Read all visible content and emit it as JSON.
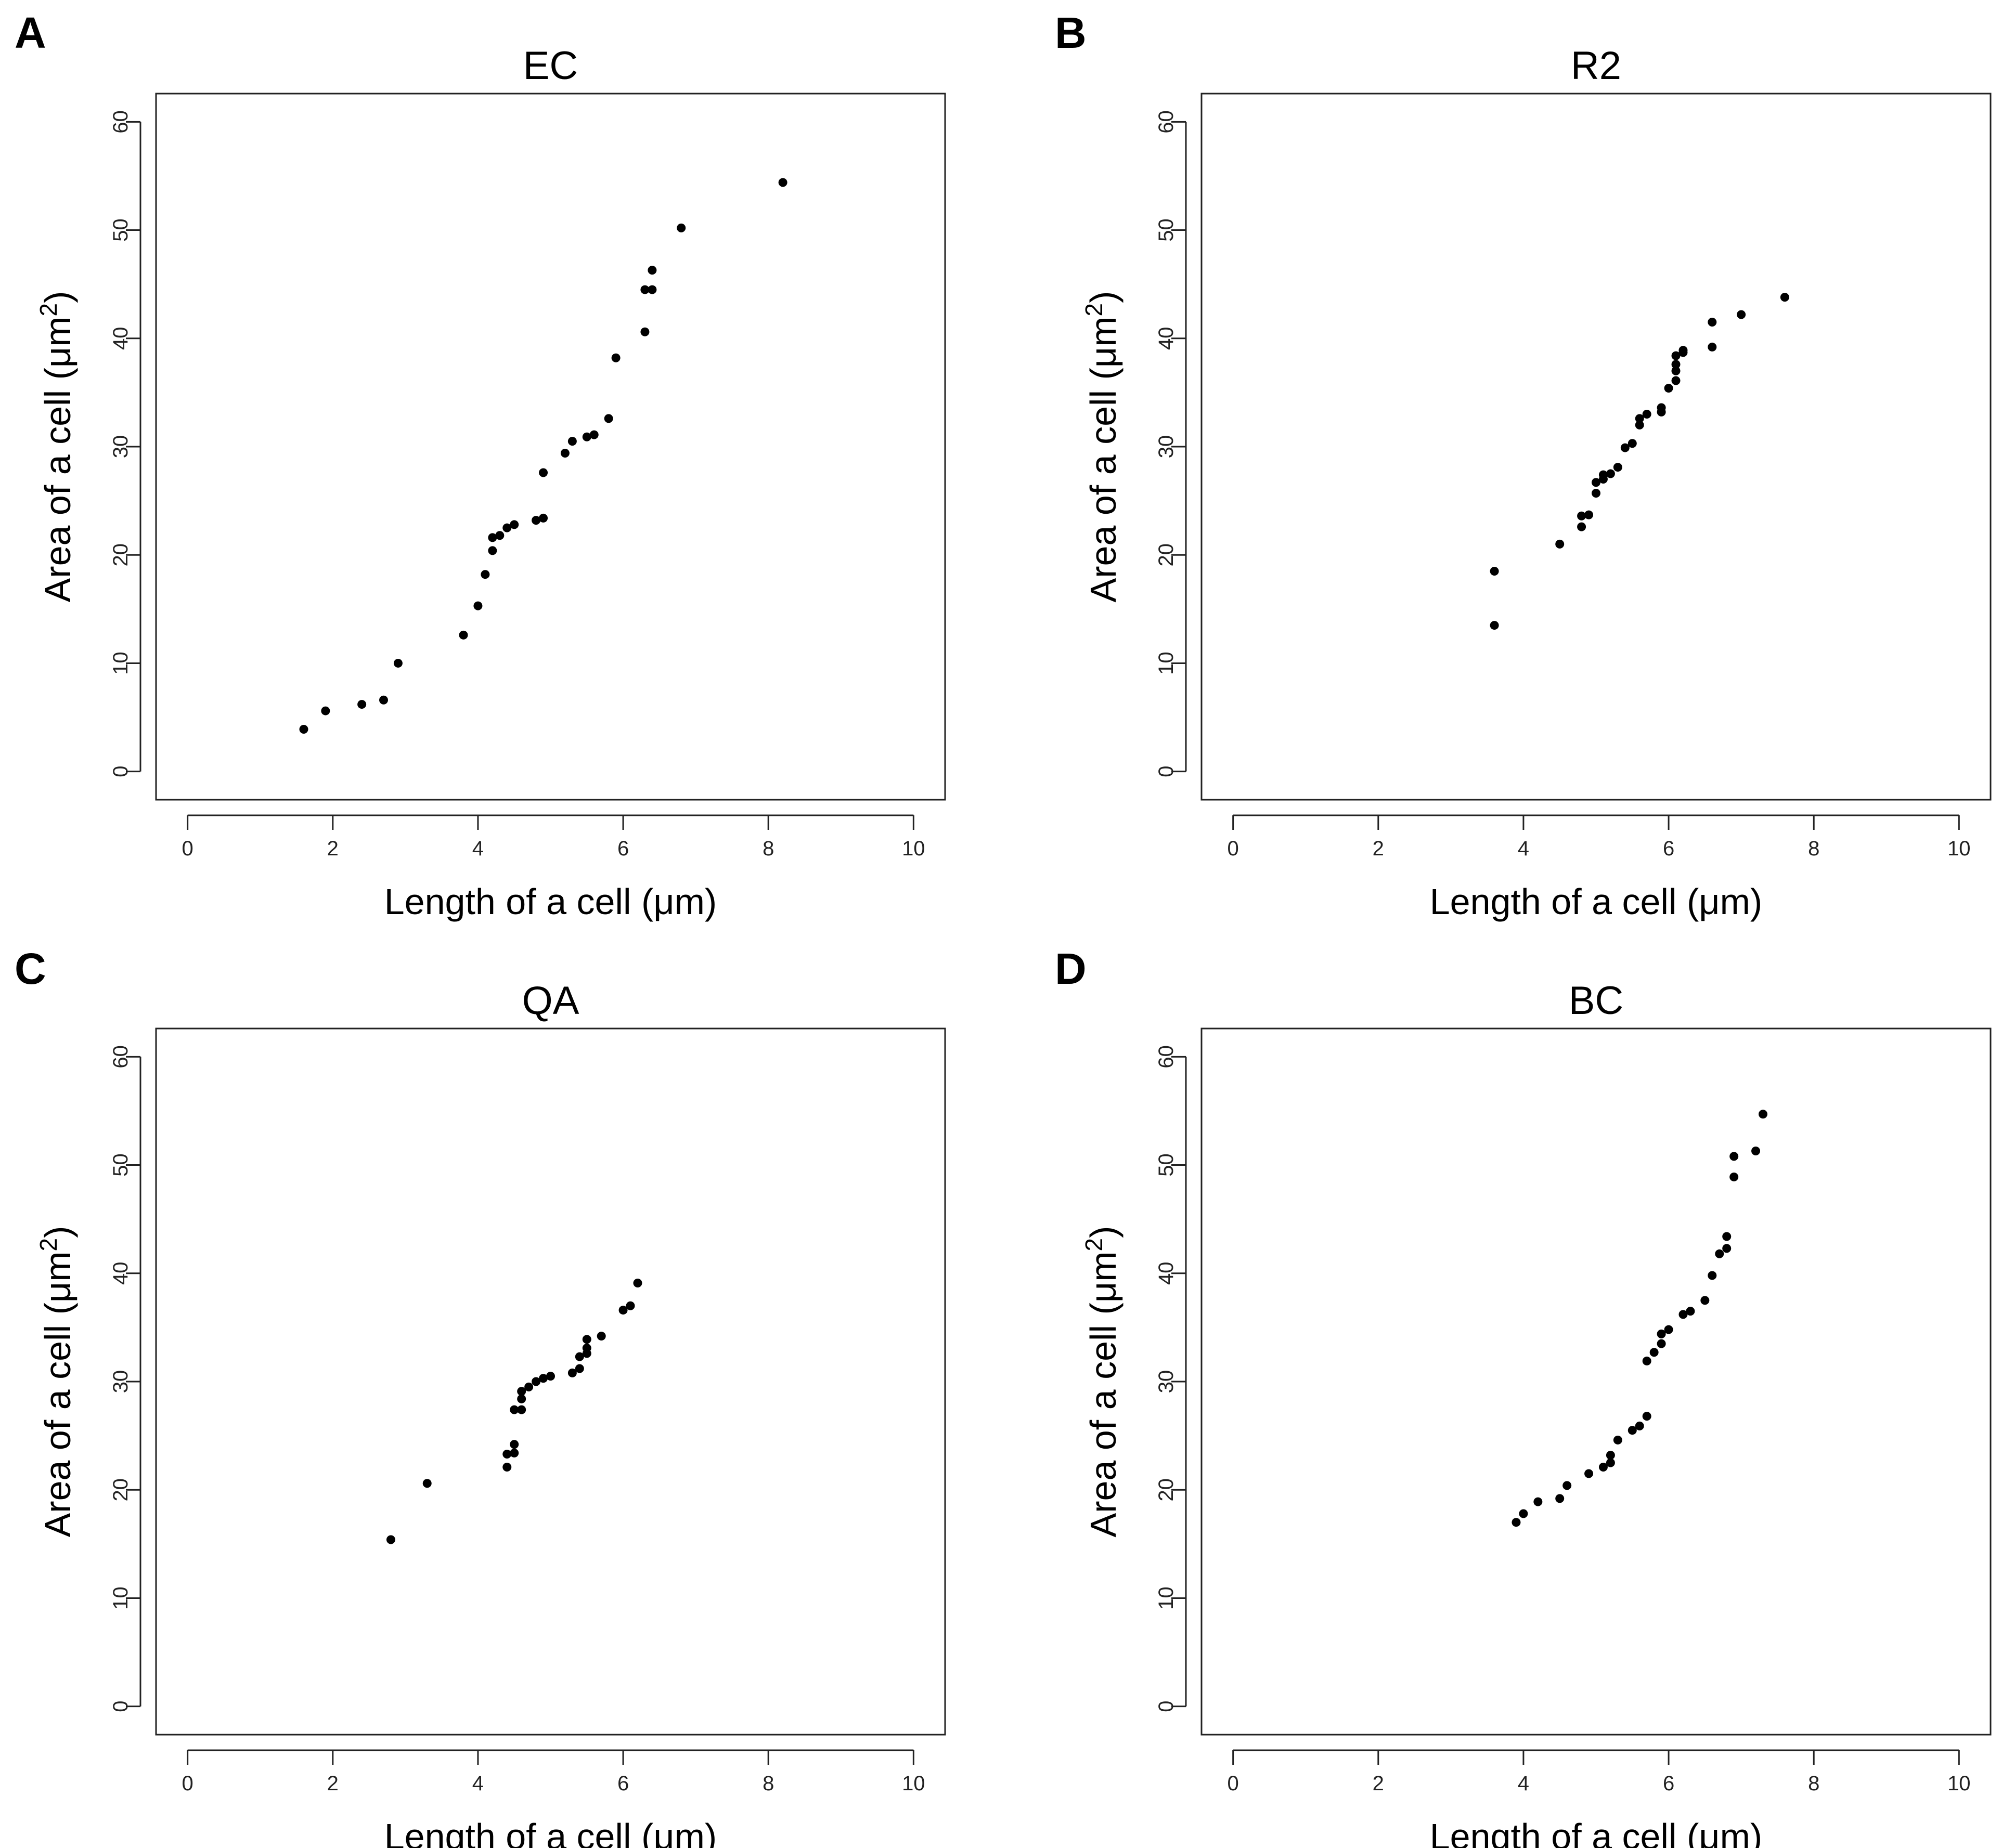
{
  "colors": {
    "background": "#ffffff",
    "points": "#000000",
    "axes": "#222222"
  },
  "chart_data": [
    {
      "panel": "A",
      "type": "scatter",
      "title": "EC",
      "xlabel": "Length of a cell (μm)",
      "ylabel_prefix": "Area of a cell (μm",
      "ylabel_sup": "2",
      "ylabel_suffix": ")",
      "xlim": [
        0,
        10
      ],
      "ylim": [
        0,
        60
      ],
      "xticks": [
        0,
        2,
        4,
        6,
        8,
        10
      ],
      "yticks": [
        0,
        10,
        20,
        30,
        40,
        50,
        60
      ],
      "x": [
        1.6,
        1.9,
        2.4,
        2.7,
        2.9,
        3.8,
        4.0,
        4.1,
        4.2,
        4.2,
        4.3,
        4.4,
        4.5,
        4.8,
        4.9,
        4.9,
        5.2,
        5.3,
        5.5,
        5.6,
        5.8,
        5.9,
        6.3,
        6.3,
        6.4,
        6.4,
        6.8,
        8.2
      ],
      "y": [
        3.9,
        5.6,
        6.2,
        6.6,
        10.0,
        12.6,
        15.3,
        18.2,
        20.4,
        21.6,
        21.8,
        22.5,
        22.8,
        23.2,
        23.4,
        27.6,
        29.4,
        30.5,
        30.9,
        31.1,
        32.6,
        38.2,
        40.6,
        44.5,
        44.5,
        46.3,
        50.2,
        54.4
      ]
    },
    {
      "panel": "B",
      "type": "scatter",
      "title": "R2",
      "xlabel": "Length of a cell (μm)",
      "ylabel_prefix": "Area of a cell (μm",
      "ylabel_sup": "2",
      "ylabel_suffix": ")",
      "xlim": [
        0,
        10
      ],
      "ylim": [
        0,
        60
      ],
      "xticks": [
        0,
        2,
        4,
        6,
        8,
        10
      ],
      "yticks": [
        0,
        10,
        20,
        30,
        40,
        50,
        60
      ],
      "x": [
        3.6,
        3.6,
        4.5,
        4.8,
        4.8,
        4.9,
        5.0,
        5.0,
        5.1,
        5.1,
        5.2,
        5.3,
        5.4,
        5.5,
        5.6,
        5.6,
        5.7,
        5.9,
        5.9,
        6.0,
        6.1,
        6.1,
        6.1,
        6.1,
        6.2,
        6.2,
        6.6,
        6.6,
        7.0,
        7.6
      ],
      "y": [
        13.5,
        18.5,
        21.0,
        22.6,
        23.6,
        23.7,
        25.7,
        26.7,
        27.0,
        27.4,
        27.5,
        28.1,
        29.9,
        30.3,
        32.0,
        32.6,
        33.0,
        33.2,
        33.6,
        35.4,
        36.1,
        37.0,
        37.6,
        38.4,
        38.7,
        38.9,
        39.2,
        41.5,
        42.2,
        43.8
      ]
    },
    {
      "panel": "C",
      "type": "scatter",
      "title": "QA",
      "xlabel": "Length of a cell (μm)",
      "ylabel_prefix": "Area of a cell (μm",
      "ylabel_sup": "2",
      "ylabel_suffix": ")",
      "xlim": [
        0,
        10
      ],
      "ylim": [
        0,
        60
      ],
      "xticks": [
        0,
        2,
        4,
        6,
        8,
        10
      ],
      "yticks": [
        0,
        10,
        20,
        30,
        40,
        50,
        60
      ],
      "x": [
        2.8,
        3.3,
        4.4,
        4.4,
        4.5,
        4.5,
        4.5,
        4.6,
        4.6,
        4.6,
        4.7,
        4.8,
        4.9,
        5.0,
        5.3,
        5.4,
        5.4,
        5.5,
        5.5,
        5.5,
        5.7,
        6.0,
        6.1,
        6.2
      ],
      "y": [
        15.4,
        20.6,
        22.1,
        23.3,
        23.4,
        24.2,
        27.4,
        27.4,
        28.4,
        29.1,
        29.5,
        30.0,
        30.3,
        30.5,
        30.8,
        31.2,
        32.3,
        32.6,
        33.1,
        33.9,
        34.2,
        36.6,
        37.0,
        39.1
      ]
    },
    {
      "panel": "D",
      "type": "scatter",
      "title": "BC",
      "xlabel": "Length of a cell (μm)",
      "ylabel_prefix": "Area of a cell (μm",
      "ylabel_sup": "2",
      "ylabel_suffix": ")",
      "xlim": [
        0,
        10
      ],
      "ylim": [
        0,
        60
      ],
      "xticks": [
        0,
        2,
        4,
        6,
        8,
        10
      ],
      "yticks": [
        0,
        10,
        20,
        30,
        40,
        50,
        60
      ],
      "x": [
        3.9,
        4.0,
        4.2,
        4.5,
        4.6,
        4.9,
        5.1,
        5.2,
        5.2,
        5.3,
        5.5,
        5.6,
        5.7,
        5.7,
        5.8,
        5.9,
        5.9,
        6.0,
        6.2,
        6.3,
        6.5,
        6.6,
        6.7,
        6.8,
        6.8,
        6.9,
        6.9,
        7.2,
        7.3
      ],
      "y": [
        17.0,
        17.8,
        18.9,
        19.2,
        20.4,
        21.5,
        22.1,
        22.5,
        23.2,
        24.6,
        25.5,
        25.9,
        26.8,
        31.9,
        32.7,
        33.5,
        34.4,
        34.8,
        36.2,
        36.5,
        37.5,
        39.8,
        41.8,
        42.3,
        43.4,
        48.9,
        50.8,
        51.3,
        54.7
      ]
    }
  ]
}
